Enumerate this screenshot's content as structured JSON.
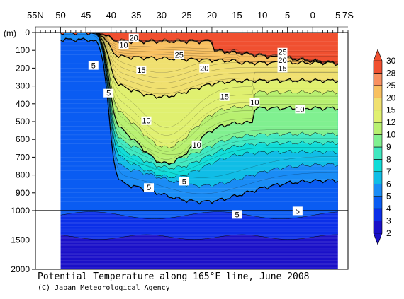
{
  "chart_data": {
    "type": "heatmap",
    "title": "Potential Temperature along 165°E line, June 2008",
    "credit": "(C) Japan Meteorological Agency",
    "y_unit": "(m)",
    "x_ticks": [
      {
        "label": "55N",
        "lat": 55
      },
      {
        "label": "50",
        "lat": 50
      },
      {
        "label": "45",
        "lat": 45
      },
      {
        "label": "40",
        "lat": 40
      },
      {
        "label": "35",
        "lat": 35
      },
      {
        "label": "30",
        "lat": 30
      },
      {
        "label": "25",
        "lat": 25
      },
      {
        "label": "20",
        "lat": 20
      },
      {
        "label": "15",
        "lat": 15
      },
      {
        "label": "10",
        "lat": 10
      },
      {
        "label": "5",
        "lat": 5
      },
      {
        "label": "0",
        "lat": 0
      },
      {
        "label": "5",
        "lat": -5
      },
      {
        "label": "7S",
        "lat": -7
      }
    ],
    "x_range": [
      55,
      -7
    ],
    "data_lat_range": [
      50,
      -5
    ],
    "y_ticks_upper": [
      "0",
      "100",
      "200",
      "300",
      "400",
      "500",
      "600",
      "700",
      "800",
      "900",
      "1000"
    ],
    "y_ticks_lower": [
      "1500",
      "2000"
    ],
    "depth_upper_range": [
      0,
      1000
    ],
    "depth_lower_range": [
      1000,
      2000
    ],
    "colorbar": {
      "levels": [
        2,
        3,
        4,
        5,
        6,
        7,
        8,
        9,
        10,
        12,
        15,
        20,
        25,
        28,
        30
      ],
      "labels": [
        "2",
        "3",
        "4",
        "5",
        "6",
        "7",
        "8",
        "9",
        "10",
        "12",
        "15",
        "20",
        "25",
        "28",
        "30"
      ],
      "colors": [
        "#1a10c8",
        "#0b2fe8",
        "#0a5cf2",
        "#1a8cf5",
        "#10bde6",
        "#10dcd8",
        "#40e8c0",
        "#80f090",
        "#b8f070",
        "#e0f070",
        "#f0e070",
        "#f8c060",
        "#f89060",
        "#f05030"
      ]
    },
    "isotherm_labels": [
      {
        "text": "20",
        "lat": 35.5,
        "depth": 30
      },
      {
        "text": "10",
        "lat": 37.5,
        "depth": 70
      },
      {
        "text": "5",
        "lat": 43.5,
        "depth": 185
      },
      {
        "text": "5",
        "lat": 40.5,
        "depth": 340
      },
      {
        "text": "15",
        "lat": 34.0,
        "depth": 210
      },
      {
        "text": "25",
        "lat": 26.5,
        "depth": 125
      },
      {
        "text": "20",
        "lat": 21.5,
        "depth": 200
      },
      {
        "text": "15",
        "lat": 17.5,
        "depth": 360
      },
      {
        "text": "10",
        "lat": 33.0,
        "depth": 495
      },
      {
        "text": "10",
        "lat": 23.0,
        "depth": 630
      },
      {
        "text": "10",
        "lat": 11.5,
        "depth": 390
      },
      {
        "text": "10",
        "lat": 2.5,
        "depth": 430
      },
      {
        "text": "25",
        "lat": 6.0,
        "depth": 110
      },
      {
        "text": "20",
        "lat": 6.0,
        "depth": 155
      },
      {
        "text": "15",
        "lat": 6.0,
        "depth": 200
      },
      {
        "text": "5",
        "lat": 32.5,
        "depth": 870
      },
      {
        "text": "5",
        "lat": 25.5,
        "depth": 835
      },
      {
        "text": "5",
        "lat": 15.0,
        "depth": 1065
      },
      {
        "text": "5",
        "lat": 3.0,
        "depth": 1005
      }
    ]
  }
}
